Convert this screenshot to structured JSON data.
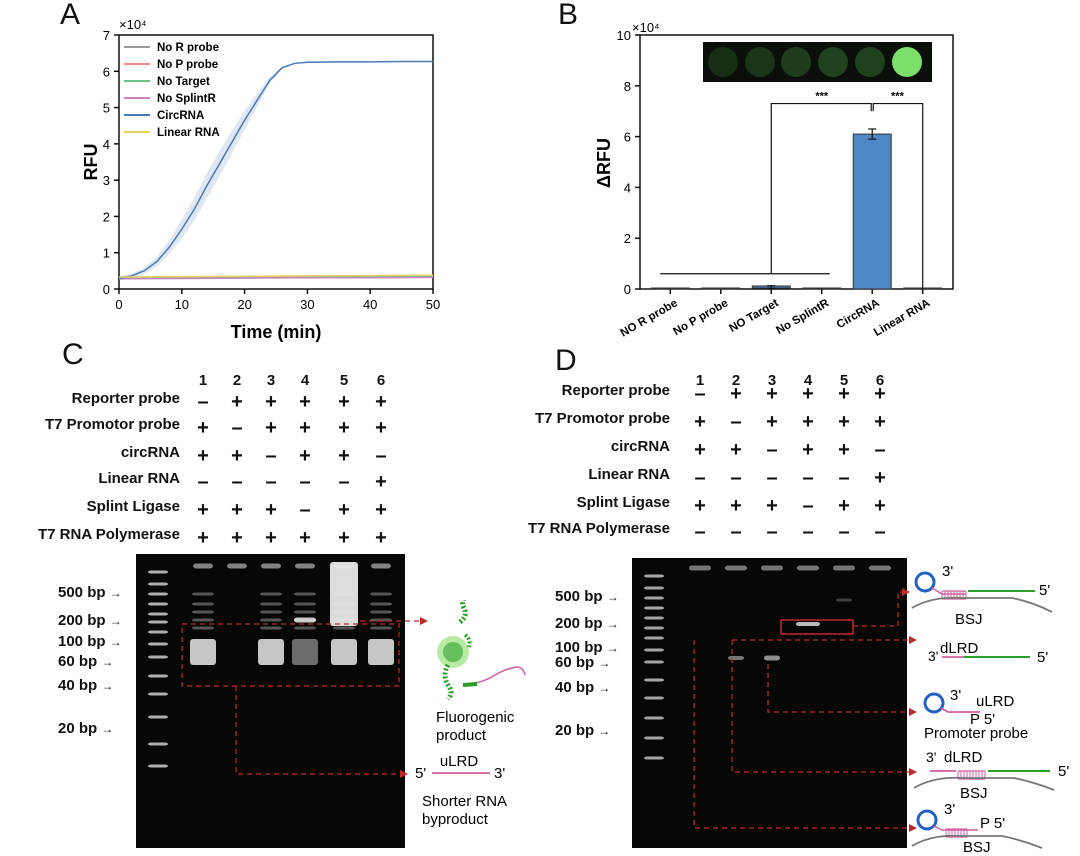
{
  "panels": {
    "a": "A",
    "b": "B",
    "c": "C",
    "d": "D"
  },
  "chart_data": [
    {
      "type": "line",
      "panel": "A",
      "xlabel": "Time (min)",
      "ylabel": "RFU",
      "y_scale_label": "×10⁴",
      "xlim": [
        0,
        50
      ],
      "ylim": [
        0,
        7
      ],
      "xticks": [
        "0",
        "10",
        "20",
        "30",
        "40",
        "50"
      ],
      "yticks": [
        "0",
        "1",
        "2",
        "3",
        "4",
        "5",
        "6",
        "7"
      ],
      "legend": "top-left",
      "series": [
        {
          "name": "No R probe",
          "color": "#9a9a9a",
          "x": [
            0,
            10,
            20,
            30,
            40,
            50
          ],
          "y": [
            0.3,
            0.31,
            0.32,
            0.33,
            0.34,
            0.35
          ]
        },
        {
          "name": "No P probe",
          "color": "#f08c8c",
          "x": [
            0,
            10,
            20,
            30,
            40,
            50
          ],
          "y": [
            0.3,
            0.31,
            0.32,
            0.33,
            0.34,
            0.35
          ]
        },
        {
          "name": "No Target",
          "color": "#6cc28c",
          "x": [
            0,
            10,
            20,
            30,
            40,
            50
          ],
          "y": [
            0.29,
            0.3,
            0.31,
            0.32,
            0.33,
            0.34
          ]
        },
        {
          "name": "No SplintR",
          "color": "#c386c3",
          "x": [
            0,
            10,
            20,
            30,
            40,
            50
          ],
          "y": [
            0.28,
            0.29,
            0.3,
            0.31,
            0.31,
            0.32
          ]
        },
        {
          "name": "CircRNA",
          "color": "#4a7ab8",
          "x": [
            0,
            2,
            4,
            6,
            8,
            10,
            12,
            14,
            16,
            18,
            20,
            22,
            24,
            26,
            28,
            30,
            35,
            40,
            45,
            50
          ],
          "y": [
            0.3,
            0.36,
            0.5,
            0.75,
            1.15,
            1.65,
            2.2,
            2.85,
            3.45,
            4.05,
            4.65,
            5.2,
            5.75,
            6.1,
            6.22,
            6.25,
            6.26,
            6.26,
            6.27,
            6.27
          ],
          "band": 0.35
        },
        {
          "name": "Linear RNA",
          "color": "#e8d060",
          "x": [
            0,
            10,
            20,
            30,
            40,
            50
          ],
          "y": [
            0.33,
            0.34,
            0.35,
            0.36,
            0.37,
            0.38
          ]
        }
      ]
    },
    {
      "type": "bar",
      "panel": "B",
      "ylabel": "ΔRFU",
      "y_scale_label": "×10⁴",
      "ylim": [
        0,
        10
      ],
      "yticks": [
        "0",
        "2",
        "4",
        "6",
        "8",
        "10"
      ],
      "categories": [
        "NO R probe",
        "No P probe",
        "NO Target",
        "No SplintR",
        "CircRNA",
        "Linear RNA"
      ],
      "values": [
        0.0,
        0.0,
        0.08,
        0.0,
        6.1,
        0.0
      ],
      "errors": [
        0,
        0,
        0.05,
        0,
        0.2,
        0
      ],
      "bar_color": "#4f86c6",
      "significance": [
        "***",
        "***"
      ]
    }
  ],
  "gel_c": {
    "lanes": [
      "1",
      "2",
      "3",
      "4",
      "5",
      "6"
    ],
    "conditions": [
      {
        "label": "Reporter probe",
        "symbols": [
          "–",
          "+",
          "+",
          "+",
          "+",
          "+"
        ]
      },
      {
        "label": "T7 Promotor probe",
        "symbols": [
          "+",
          "–",
          "+",
          "+",
          "+",
          "+"
        ]
      },
      {
        "label": "circRNA",
        "symbols": [
          "+",
          "+",
          "–",
          "+",
          "+",
          "–"
        ]
      },
      {
        "label": "Linear RNA",
        "symbols": [
          "–",
          "–",
          "–",
          "–",
          "–",
          "+"
        ]
      },
      {
        "label": "Splint Ligase",
        "symbols": [
          "+",
          "+",
          "+",
          "–",
          "+",
          "+"
        ]
      },
      {
        "label": "T7 RNA Polymerase",
        "symbols": [
          "+",
          "+",
          "+",
          "+",
          "+",
          "+"
        ]
      }
    ],
    "markers": [
      "500 bp",
      "200 bp",
      "100 bp",
      "60  bp",
      "40  bp",
      "20  bp"
    ],
    "fluorogenic_label": [
      "Fluorogenic",
      "product"
    ],
    "byproduct_label": [
      "Shorter RNA",
      "byproduct"
    ],
    "byproduct_seq": {
      "five": "5'",
      "name": "uLRD",
      "three": "3'"
    }
  },
  "gel_d": {
    "lanes": [
      "1",
      "2",
      "3",
      "4",
      "5",
      "6"
    ],
    "conditions": [
      {
        "label": "Reporter probe",
        "symbols": [
          "–",
          "+",
          "+",
          "+",
          "+",
          "+"
        ]
      },
      {
        "label": "T7 Promotor probe",
        "symbols": [
          "+",
          "–",
          "+",
          "+",
          "+",
          "+"
        ]
      },
      {
        "label": "circRNA",
        "symbols": [
          "+",
          "+",
          "–",
          "+",
          "+",
          "–"
        ]
      },
      {
        "label": "Linear RNA",
        "symbols": [
          "–",
          "–",
          "–",
          "–",
          "–",
          "+"
        ]
      },
      {
        "label": "Splint Ligase",
        "symbols": [
          "+",
          "+",
          "+",
          "–",
          "+",
          "+"
        ]
      },
      {
        "label": "T7 RNA Polymerase",
        "symbols": [
          "–",
          "–",
          "–",
          "–",
          "–",
          "–"
        ]
      }
    ],
    "markers": [
      "500 bp",
      "200 bp",
      "100 bp",
      "60  bp",
      "40  bp",
      "20  bp"
    ],
    "schematics": {
      "s1": {
        "three": "3'",
        "five": "5'",
        "bsj": "BSJ"
      },
      "s2": {
        "three": "3'",
        "name": "dLRD",
        "five": "5'"
      },
      "s3": {
        "three": "3'",
        "name": "uLRD",
        "p5": "P 5'",
        "caption": "Promoter probe"
      },
      "s4": {
        "three": "3'",
        "name": "dLRD",
        "five": "5'",
        "bsj": "BSJ"
      },
      "s5": {
        "three": "3'",
        "p5": "P 5'",
        "bsj": "BSJ"
      }
    }
  }
}
